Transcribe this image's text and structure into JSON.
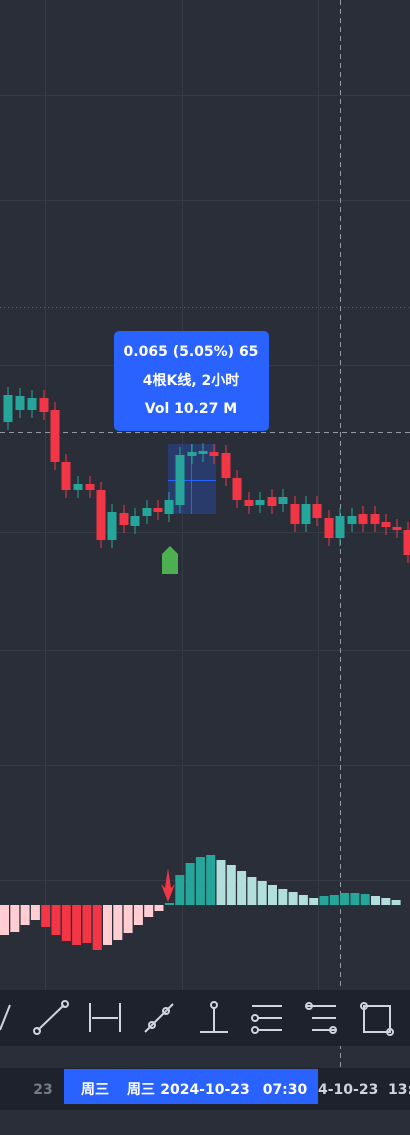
{
  "tooltip": {
    "lines": [
      "0.065 (5.05%) 65",
      "4根K线, 2小时",
      "Vol 10.27 M"
    ]
  },
  "time_axis": {
    "labels": [
      "23",
      "4-10-23",
      "13:"
    ],
    "crosshair": [
      "周三",
      "周三",
      "2024-10-23",
      "07:30"
    ]
  }
}
